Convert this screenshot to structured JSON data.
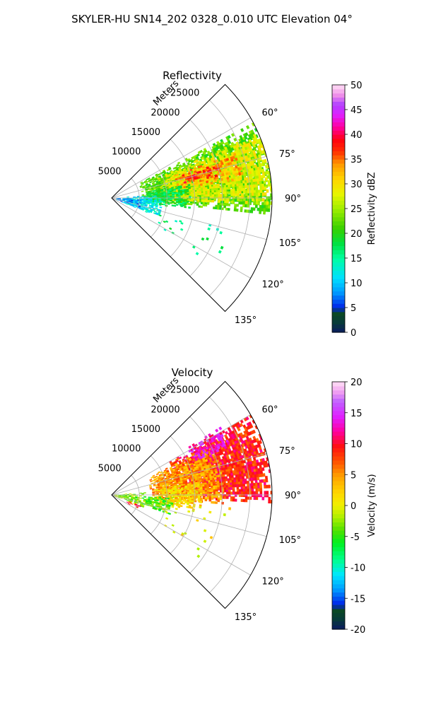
{
  "figure": {
    "title": "SKYLER-HU  SN14_202  0328_0.010 UTC Elevation 04°",
    "background": "#ffffff"
  },
  "chart_data": [
    {
      "type": "heatmap",
      "projection": "polar-sector",
      "title": "Reflectivity",
      "radial_axis_label": "Meters",
      "radial_ticks": [
        "5000",
        "10000",
        "15000",
        "20000",
        "25000"
      ],
      "radial_tick_values": [
        5000,
        10000,
        15000,
        20000,
        25000
      ],
      "angle_ticks": [
        "60°",
        "75°",
        "90°",
        "105°",
        "120°",
        "135°"
      ],
      "angle_tick_values": [
        60,
        75,
        90,
        105,
        120,
        135
      ],
      "azimuth_range_deg": [
        45,
        135
      ],
      "range_max_m": 29000,
      "grid": true,
      "colorbar": {
        "label": "Reflectivity dBZ",
        "range": [
          0,
          50
        ],
        "ticks": [
          "0",
          "5",
          "10",
          "15",
          "20",
          "25",
          "30",
          "35",
          "40",
          "45",
          "50"
        ],
        "stops": [
          [
            0.0,
            "#0b1a60"
          ],
          [
            0.04,
            "#073a3a"
          ],
          [
            0.08,
            "#0c4a22"
          ],
          [
            0.1,
            "#0020e8"
          ],
          [
            0.16,
            "#0098ff"
          ],
          [
            0.22,
            "#00e0ff"
          ],
          [
            0.3,
            "#00ffa0"
          ],
          [
            0.36,
            "#00e040"
          ],
          [
            0.42,
            "#38d000"
          ],
          [
            0.5,
            "#a0ee00"
          ],
          [
            0.56,
            "#e8f500"
          ],
          [
            0.62,
            "#ffd500"
          ],
          [
            0.68,
            "#ff9900"
          ],
          [
            0.73,
            "#ff3000"
          ],
          [
            0.78,
            "#ff0010"
          ],
          [
            0.83,
            "#ff00a0"
          ],
          [
            0.88,
            "#e020ff"
          ],
          [
            0.92,
            "#b040ff"
          ],
          [
            0.96,
            "#f090e8"
          ],
          [
            1.0,
            "#ffe0f5"
          ]
        ]
      },
      "echo_regions": [
        {
          "level": 22,
          "az": [
            62,
            96
          ],
          "range": [
            5500,
            29000
          ],
          "density": 0.85
        },
        {
          "level": 28,
          "az": [
            66,
            92
          ],
          "range": [
            9000,
            29000
          ],
          "density": 0.8
        },
        {
          "level": 33,
          "az": [
            70,
            82
          ],
          "range": [
            12000,
            24000
          ],
          "density": 0.55
        },
        {
          "level": 37,
          "az": [
            72,
            78
          ],
          "range": [
            13000,
            20000
          ],
          "density": 0.5
        },
        {
          "level": 18,
          "az": [
            80,
            98
          ],
          "range": [
            6000,
            14000
          ],
          "density": 0.7
        },
        {
          "level": 12,
          "az": [
            86,
            112
          ],
          "range": [
            2000,
            9000
          ],
          "density": 0.55
        },
        {
          "level": 8,
          "az": [
            92,
            110
          ],
          "range": [
            500,
            6000
          ],
          "density": 0.35
        },
        {
          "level": 16,
          "az": [
            95,
            125
          ],
          "range": [
            8000,
            22000
          ],
          "density": 0.03
        }
      ]
    },
    {
      "type": "heatmap",
      "projection": "polar-sector",
      "title": "Velocity",
      "radial_axis_label": "Meters",
      "radial_ticks": [
        "5000",
        "10000",
        "15000",
        "20000",
        "25000"
      ],
      "radial_tick_values": [
        5000,
        10000,
        15000,
        20000,
        25000
      ],
      "angle_ticks": [
        "60°",
        "75°",
        "90°",
        "105°",
        "120°",
        "135°"
      ],
      "angle_tick_values": [
        60,
        75,
        90,
        105,
        120,
        135
      ],
      "azimuth_range_deg": [
        45,
        135
      ],
      "range_max_m": 29000,
      "grid": true,
      "colorbar": {
        "label": "Velocity (m/s)",
        "range": [
          -20,
          20
        ],
        "ticks": [
          "-20",
          "-15",
          "-10",
          "-5",
          "0",
          "5",
          "10",
          "15",
          "20"
        ],
        "stops": [
          [
            0.0,
            "#0b1a60"
          ],
          [
            0.04,
            "#073a3a"
          ],
          [
            0.08,
            "#0c4a22"
          ],
          [
            0.1,
            "#0020e8"
          ],
          [
            0.16,
            "#0098ff"
          ],
          [
            0.22,
            "#00e8ff"
          ],
          [
            0.28,
            "#00ff90"
          ],
          [
            0.35,
            "#00f020"
          ],
          [
            0.4,
            "#50e000"
          ],
          [
            0.45,
            "#a8f000"
          ],
          [
            0.5,
            "#f0f000"
          ],
          [
            0.55,
            "#ffd800"
          ],
          [
            0.62,
            "#ffa000"
          ],
          [
            0.68,
            "#ff5000"
          ],
          [
            0.74,
            "#ff1010"
          ],
          [
            0.8,
            "#ff00a0"
          ],
          [
            0.86,
            "#e020ff"
          ],
          [
            0.92,
            "#c060ff"
          ],
          [
            0.96,
            "#f0a0f0"
          ],
          [
            1.0,
            "#ffe0f5"
          ]
        ]
      },
      "echo_regions": [
        {
          "level": 9,
          "az": [
            60,
            92
          ],
          "range": [
            12000,
            29000
          ],
          "density": 0.9
        },
        {
          "level": 5,
          "az": [
            64,
            94
          ],
          "range": [
            7000,
            20000
          ],
          "density": 0.85
        },
        {
          "level": 13,
          "az": [
            58,
            68
          ],
          "range": [
            16000,
            23000
          ],
          "density": 0.7
        },
        {
          "level": 2,
          "az": [
            82,
            100
          ],
          "range": [
            8000,
            16000
          ],
          "density": 0.75
        },
        {
          "level": -4,
          "az": [
            92,
            108
          ],
          "range": [
            5500,
            11000
          ],
          "density": 0.7
        },
        {
          "level": -3,
          "az": [
            86,
            112
          ],
          "range": [
            500,
            6000
          ],
          "density": 0.45
        },
        {
          "level": 10,
          "az": [
            108,
            118
          ],
          "range": [
            3000,
            6000
          ],
          "density": 0.25
        },
        {
          "level": 1,
          "az": [
            95,
            125
          ],
          "range": [
            8000,
            22000
          ],
          "density": 0.03
        }
      ]
    }
  ]
}
